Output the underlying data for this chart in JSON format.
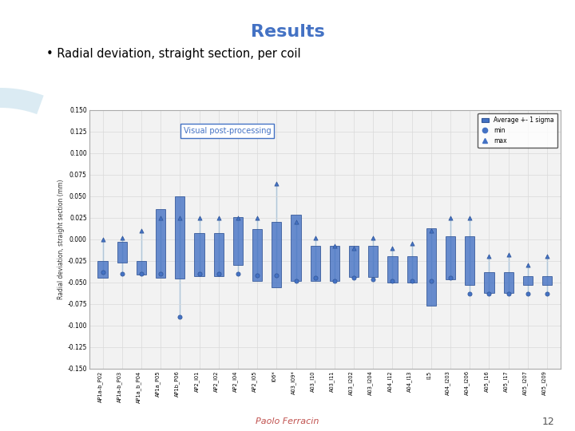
{
  "title": "Results",
  "bullet": "Radial deviation, straight section, per coil",
  "annotation": "Visual post-processing",
  "ylabel": "Radial deviation, straight section (mm)",
  "ylim": [
    -0.15,
    0.15
  ],
  "yticks": [
    -0.15,
    -0.125,
    -0.1,
    -0.075,
    -0.05,
    -0.025,
    0.0,
    0.025,
    0.05,
    0.075,
    0.1,
    0.125,
    0.15
  ],
  "categories": [
    "AP1a-b_P02",
    "AP1a-b_P03",
    "AP1a_b_P04",
    "AP1a_P05",
    "AP1b_P06",
    "AP2_I01",
    "AP2_I02",
    "AP2_I04",
    "AP2_I05",
    "I06*",
    "A03_I09*",
    "A03_I10",
    "A03_I11",
    "A03_I202",
    "A03_I204",
    "A04_I12",
    "A04_I13",
    "I15",
    "A04_I203",
    "A04_I206",
    "A05_I16",
    "A05_I17",
    "A05_I207",
    "A05_I209"
  ],
  "avg": [
    -0.035,
    -0.015,
    -0.033,
    -0.005,
    0.002,
    -0.018,
    -0.018,
    -0.002,
    -0.018,
    -0.018,
    -0.01,
    -0.028,
    -0.028,
    -0.026,
    -0.026,
    -0.035,
    -0.035,
    -0.032,
    -0.022,
    -0.025,
    -0.05,
    -0.05,
    -0.048,
    -0.048
  ],
  "sigma": [
    0.01,
    0.012,
    0.008,
    0.04,
    0.048,
    0.025,
    0.025,
    0.028,
    0.03,
    0.038,
    0.038,
    0.02,
    0.02,
    0.018,
    0.018,
    0.015,
    0.015,
    0.045,
    0.025,
    0.028,
    0.012,
    0.012,
    0.005,
    0.005
  ],
  "min_vals": [
    -0.038,
    -0.04,
    -0.04,
    -0.04,
    -0.09,
    -0.04,
    -0.04,
    -0.04,
    -0.042,
    -0.042,
    -0.048,
    -0.045,
    -0.048,
    -0.045,
    -0.047,
    -0.048,
    -0.048,
    -0.048,
    -0.045,
    -0.063,
    -0.063,
    -0.063,
    -0.063,
    -0.063
  ],
  "max_vals": [
    -0.0,
    0.002,
    0.01,
    0.025,
    0.025,
    0.025,
    0.025,
    0.025,
    0.025,
    0.065,
    0.02,
    0.002,
    -0.008,
    -0.01,
    0.002,
    -0.01,
    -0.005,
    0.01,
    0.025,
    0.025,
    -0.02,
    -0.018,
    -0.03,
    -0.02
  ],
  "bar_color": "#4472C4",
  "bar_color_light": "#7396D4",
  "dark_blue": "#17375E",
  "marker_color": "#4472C4",
  "line_color": "#5B9BD5",
  "bg_color": "#FFFFFF",
  "grid_color": "#D9D9D9",
  "title_color": "#4472C4",
  "bullet_color": "#000000",
  "footer_color": "#C0504D",
  "slide_bg": "#FFFFFF",
  "chart_bg": "#F2F2F2",
  "teal_arc": "#00B0C8"
}
